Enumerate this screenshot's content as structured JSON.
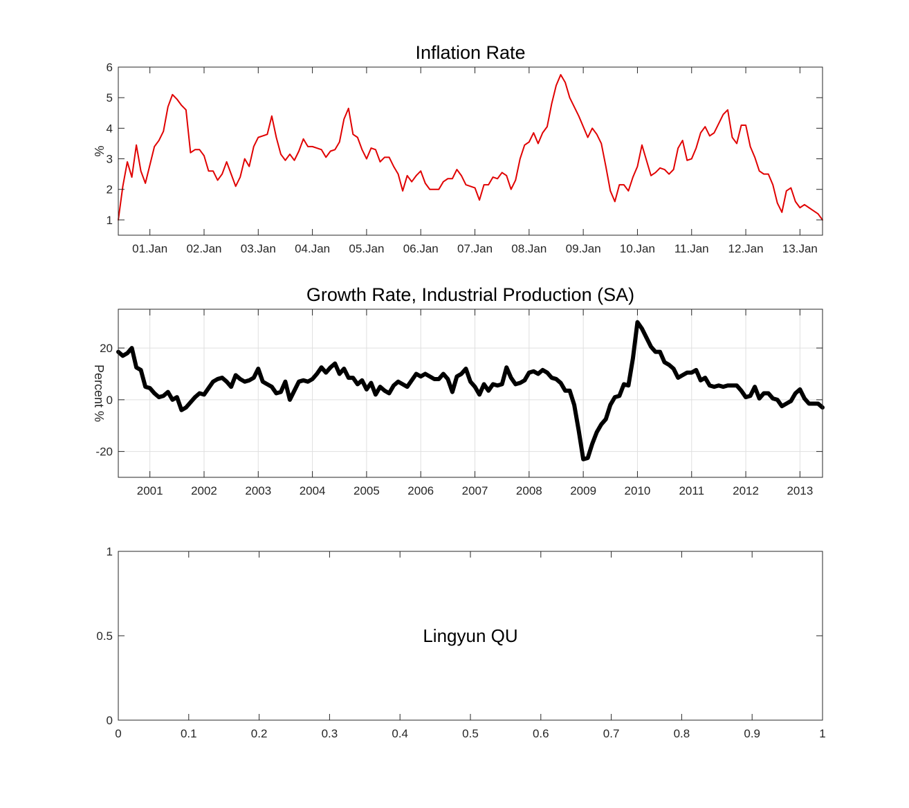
{
  "chart_data": [
    {
      "type": "line",
      "title": "Inflation Rate",
      "ylabel": "%",
      "xlabel": "",
      "x_start": "2000-06",
      "x_end": "2013-06",
      "xlim": [
        "2000-06",
        "2013-06"
      ],
      "ylim": [
        0.5,
        6
      ],
      "yticks": [
        1,
        2,
        3,
        4,
        5,
        6
      ],
      "xticks": [
        {
          "date": "2001-01",
          "label": "01.Jan"
        },
        {
          "date": "2002-01",
          "label": "02.Jan"
        },
        {
          "date": "2003-01",
          "label": "03.Jan"
        },
        {
          "date": "2004-01",
          "label": "04.Jan"
        },
        {
          "date": "2005-01",
          "label": "05.Jan"
        },
        {
          "date": "2006-01",
          "label": "06.Jan"
        },
        {
          "date": "2007-01",
          "label": "07.Jan"
        },
        {
          "date": "2008-01",
          "label": "08.Jan"
        },
        {
          "date": "2009-01",
          "label": "09.Jan"
        },
        {
          "date": "2010-01",
          "label": "10.Jan"
        },
        {
          "date": "2011-01",
          "label": "11.Jan"
        },
        {
          "date": "2012-01",
          "label": "12.Jan"
        },
        {
          "date": "2013-01",
          "label": "13.Jan"
        }
      ],
      "grid": false,
      "color": "#e00000",
      "values": [
        1.0,
        2.1,
        2.9,
        2.4,
        3.45,
        2.6,
        2.2,
        2.8,
        3.4,
        3.6,
        3.9,
        4.7,
        5.1,
        4.95,
        4.75,
        4.6,
        3.2,
        3.3,
        3.3,
        3.1,
        2.6,
        2.6,
        2.3,
        2.5,
        2.9,
        2.5,
        2.1,
        2.4,
        3.0,
        2.75,
        3.4,
        3.7,
        3.75,
        3.8,
        4.4,
        3.7,
        3.15,
        2.95,
        3.15,
        2.95,
        3.25,
        3.65,
        3.4,
        3.4,
        3.35,
        3.3,
        3.05,
        3.25,
        3.3,
        3.55,
        4.3,
        4.65,
        3.8,
        3.7,
        3.3,
        3.0,
        3.35,
        3.3,
        2.9,
        3.05,
        3.05,
        2.75,
        2.5,
        1.95,
        2.45,
        2.25,
        2.45,
        2.6,
        2.2,
        2.0,
        2.0,
        2.0,
        2.25,
        2.35,
        2.35,
        2.65,
        2.45,
        2.15,
        2.1,
        2.05,
        1.65,
        2.15,
        2.15,
        2.4,
        2.35,
        2.55,
        2.45,
        2.0,
        2.3,
        3.0,
        3.45,
        3.55,
        3.85,
        3.5,
        3.85,
        4.05,
        4.8,
        5.4,
        5.75,
        5.5,
        5.0,
        4.7,
        4.4,
        4.05,
        3.7,
        4.0,
        3.8,
        3.5,
        2.75,
        1.95,
        1.6,
        2.15,
        2.15,
        1.95,
        2.4,
        2.75,
        3.45,
        2.95,
        2.45,
        2.55,
        2.7,
        2.65,
        2.5,
        2.65,
        3.35,
        3.6,
        2.95,
        3.0,
        3.35,
        3.85,
        4.05,
        3.75,
        3.85,
        4.15,
        4.45,
        4.6,
        3.7,
        3.5,
        4.1,
        4.1,
        3.4,
        3.05,
        2.6,
        2.5,
        2.5,
        2.15,
        1.55,
        1.25,
        1.95,
        2.05,
        1.6,
        1.4,
        1.5,
        1.4,
        1.3,
        1.2,
        1.0
      ]
    },
    {
      "type": "line",
      "title": "Growth Rate, Industrial Production (SA)",
      "ylabel": "Percent %",
      "xlabel": "",
      "x_start": "2000-06",
      "x_end": "2013-06",
      "xlim": [
        "2000-06",
        "2013-06"
      ],
      "ylim": [
        -30,
        35
      ],
      "yticks": [
        -20,
        0,
        20
      ],
      "xticks": [
        {
          "date": "2001-01",
          "label": "2001"
        },
        {
          "date": "2002-01",
          "label": "2002"
        },
        {
          "date": "2003-01",
          "label": "2003"
        },
        {
          "date": "2004-01",
          "label": "2004"
        },
        {
          "date": "2005-01",
          "label": "2005"
        },
        {
          "date": "2006-01",
          "label": "2006"
        },
        {
          "date": "2007-01",
          "label": "2007"
        },
        {
          "date": "2008-01",
          "label": "2008"
        },
        {
          "date": "2009-01",
          "label": "2009"
        },
        {
          "date": "2010-01",
          "label": "2010"
        },
        {
          "date": "2011-01",
          "label": "2011"
        },
        {
          "date": "2012-01",
          "label": "2012"
        },
        {
          "date": "2013-01",
          "label": "2013"
        }
      ],
      "grid": true,
      "color": "#000000",
      "values": [
        18.5,
        17,
        18,
        20,
        12.5,
        11.5,
        5,
        4.5,
        2.5,
        1,
        1.5,
        3,
        0,
        1,
        -4,
        -3,
        -1,
        1,
        2.5,
        2,
        4.5,
        7,
        8,
        8.5,
        7,
        5,
        9.5,
        8,
        7,
        7.5,
        8.5,
        12,
        7,
        6,
        5,
        2.5,
        3,
        7,
        0,
        3.5,
        7,
        7.5,
        7,
        8,
        10,
        12.5,
        10.5,
        12.5,
        14,
        10,
        12,
        8.5,
        8.5,
        6,
        7.5,
        4,
        6.5,
        2,
        5,
        3.5,
        2.5,
        5.5,
        7,
        6,
        5,
        7.5,
        10,
        9,
        10,
        9,
        8,
        8,
        10,
        8,
        3,
        9,
        10,
        12,
        7,
        5,
        2,
        6,
        3.5,
        6,
        5.5,
        6,
        12.5,
        8.5,
        6,
        6.5,
        7.5,
        10.5,
        11,
        10,
        11.5,
        10.5,
        8.5,
        8,
        6.5,
        3.5,
        3.5,
        -2,
        -12,
        -23,
        -22.5,
        -17,
        -12.5,
        -9.5,
        -7.5,
        -2,
        1,
        1.5,
        6,
        5.5,
        16,
        30,
        27.5,
        24,
        20.5,
        18.5,
        18.5,
        14.5,
        13.5,
        12,
        8.5,
        9.5,
        10.5,
        10.5,
        11.5,
        7.5,
        8.5,
        5.5,
        5,
        5.5,
        5,
        5.5,
        5.5,
        5.5,
        3.5,
        1,
        1.5,
        5,
        0.5,
        2.5,
        2.5,
        0.5,
        0,
        -2.5,
        -1.5,
        -0.5,
        2.5,
        4,
        0.5,
        -1.5,
        -1.5,
        -1.5,
        -3
      ]
    },
    {
      "type": "line",
      "title": "",
      "xlabel": "",
      "ylabel": "",
      "xlim": [
        0,
        1
      ],
      "ylim": [
        0,
        1
      ],
      "xticks": [
        0,
        0.1,
        0.2,
        0.3,
        0.4,
        0.5,
        0.6,
        0.7,
        0.8,
        0.9,
        1
      ],
      "xtick_labels": [
        "0",
        "0.1",
        "0.2",
        "0.3",
        "0.4",
        "0.5",
        "0.6",
        "0.7",
        "0.8",
        "0.9",
        "1"
      ],
      "yticks": [
        0,
        0.5,
        1
      ],
      "ytick_labels": [
        "0",
        "0.5",
        "1"
      ],
      "grid": false,
      "series": [],
      "annotations": [
        {
          "text": "Lingyun QU",
          "x": 0.5,
          "y": 0.5
        }
      ]
    }
  ]
}
